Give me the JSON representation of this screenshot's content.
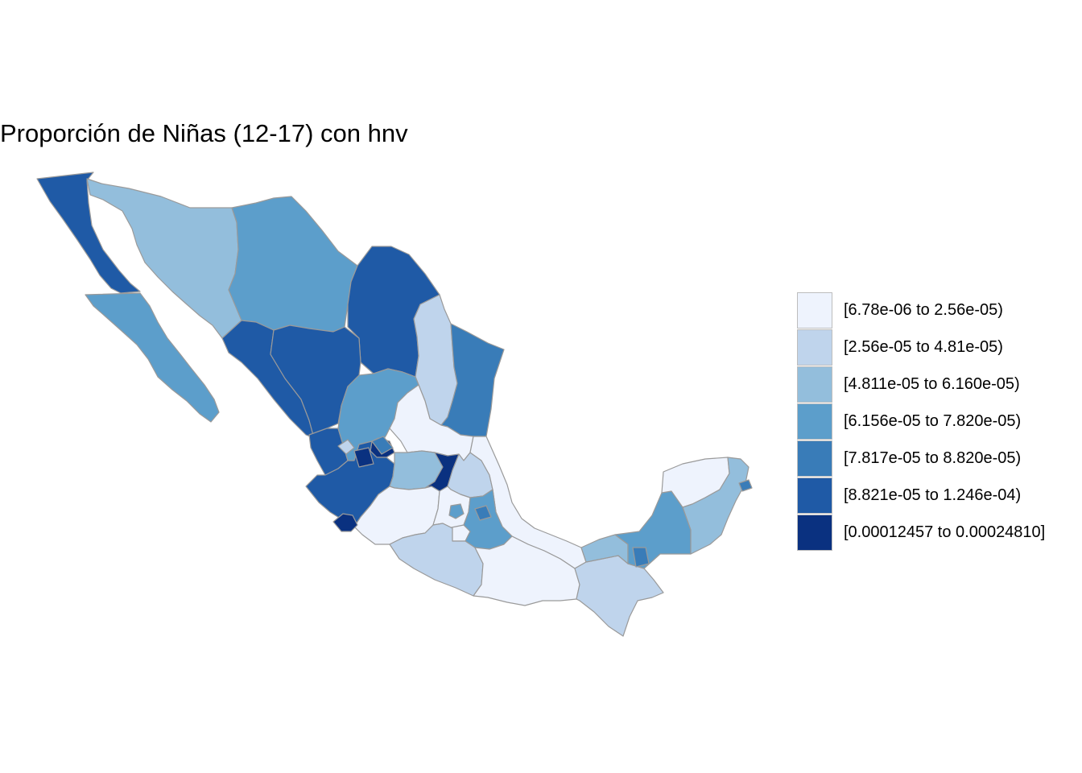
{
  "title": "Proporción de Niñas (12-17) con hnv",
  "legend": {
    "items": [
      {
        "label": "[6.78e-06 to 2.56e-05)",
        "color": "#eef3fd"
      },
      {
        "label": "[2.56e-05 to 4.81e-05)",
        "color": "#bfd4ec"
      },
      {
        "label": "[4.811e-05 to 6.160e-05)",
        "color": "#93bedc"
      },
      {
        "label": "[6.156e-05 to 7.820e-05)",
        "color": "#5c9ecb"
      },
      {
        "label": "[7.817e-05 to 8.820e-05)",
        "color": "#397cb8"
      },
      {
        "label": "[8.821e-05 to 1.246e-04)",
        "color": "#1f5aa6"
      },
      {
        "label": "[0.00012457 to 0.00024810]",
        "color": "#0a3180"
      }
    ]
  },
  "regions": [
    {
      "class": 5
    },
    {
      "class": 3
    },
    {
      "class": 2
    },
    {
      "class": 3
    },
    {
      "class": 5
    },
    {
      "class": 1
    },
    {
      "class": 4
    },
    {
      "class": 5
    },
    {
      "class": 5
    },
    {
      "class": 5
    },
    {
      "class": 3
    },
    {
      "class": 0
    },
    {
      "class": 6
    },
    {
      "class": 5
    },
    {
      "class": 2
    },
    {
      "class": 6
    },
    {
      "class": 1
    },
    {
      "class": 0
    },
    {
      "class": 0
    },
    {
      "class": 6
    },
    {
      "class": 0
    },
    {
      "class": 3
    },
    {
      "class": 1
    },
    {
      "class": 0
    },
    {
      "class": 3
    },
    {
      "class": 1
    },
    {
      "class": 0
    },
    {
      "class": 1
    },
    {
      "class": 2
    },
    {
      "class": 3
    },
    {
      "class": 0
    },
    {
      "class": 2
    },
    {
      "class": 1
    },
    {
      "class": 4
    },
    {
      "class": 4
    },
    {
      "class": 4
    },
    {
      "class": 6
    },
    {
      "class": 4
    },
    {
      "class": 4
    }
  ]
}
